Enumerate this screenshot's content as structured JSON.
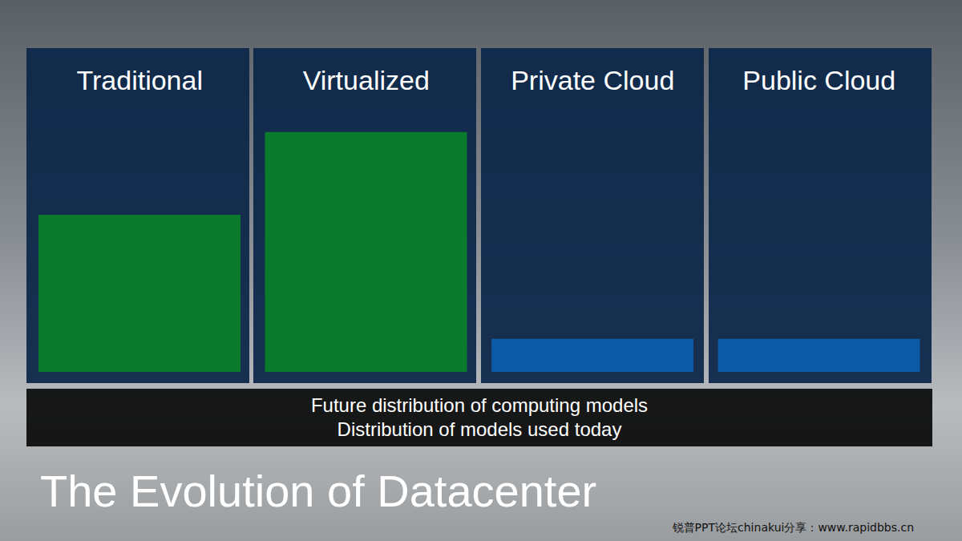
{
  "chart_data": {
    "type": "bar",
    "title": "The Evolution of Datacenter",
    "annotations": [
      "Future distribution of computing models",
      "Distribution of models used today"
    ],
    "watermark": "锐普PPT论坛chinakui分享：www.rapidbbs.cn",
    "categories": [
      "Traditional",
      "Virtualized",
      "Private Cloud",
      "Public Cloud"
    ],
    "values": [
      57,
      87,
      12,
      12
    ],
    "colors": [
      "#0a7a2c",
      "#0a7a2c",
      "#0c5aa6",
      "#0c5aa6"
    ],
    "ylim": [
      0,
      100
    ],
    "yticks": [
      0,
      100
    ],
    "tick_labels": "x",
    "grid": false
  }
}
